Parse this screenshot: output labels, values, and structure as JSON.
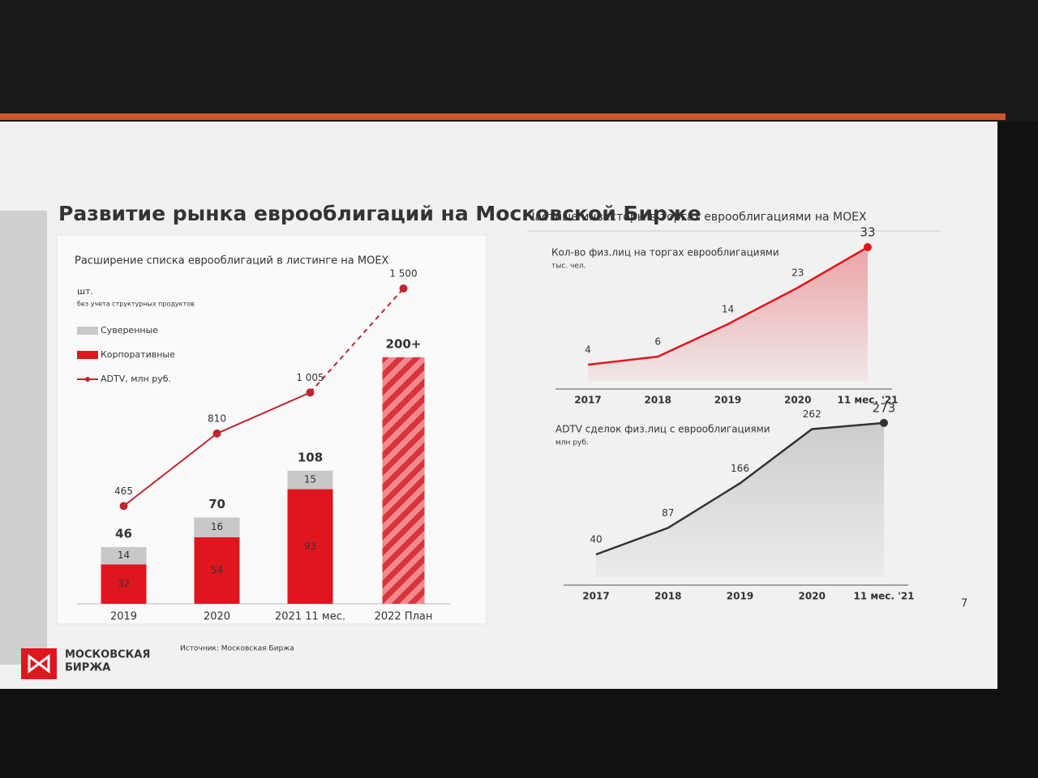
{
  "slide": {
    "title": "Развитие рынка еврооблигаций на Московской Бирже",
    "panel_title": "Частные инвесторы в торгах еврооблигациями на MOEX",
    "page": "7",
    "logo": [
      "МОСКОВСКАЯ",
      "БИРЖА"
    ],
    "source": "Источник: Московская Биржа"
  },
  "chart_data": [
    {
      "type": "bar",
      "title": "Расширение списка еврооблигаций в листинге на MOEX",
      "unit": "шт.",
      "note": "без учета структурных продуктов",
      "categories": [
        "2019",
        "2020",
        "2021 11 мес.",
        "2022 План"
      ],
      "series": [
        {
          "name": "Суверенные",
          "color": "#c8c8c8",
          "values": [
            14,
            16,
            15,
            null
          ]
        },
        {
          "name": "Корпоративные",
          "color": "#e0161e",
          "values": [
            32,
            54,
            93,
            null
          ]
        }
      ],
      "totals": {
        "values": [
          46,
          70,
          108,
          200
        ],
        "value_labels": [
          "46",
          "70",
          "108",
          "200+"
        ]
      },
      "line": {
        "name": "ADTV, млн руб.",
        "color": "#c0262e",
        "axis": "y2",
        "values": [
          465,
          810,
          1005,
          1500
        ],
        "value_labels": [
          "465",
          "810",
          "1 005",
          "1 500"
        ]
      },
      "ylim": [
        0,
        240
      ],
      "y2lim": [
        0,
        1600
      ]
    },
    {
      "type": "area",
      "title": "Кол-во физ.лиц на торгах еврооблигациями",
      "unit": "тыс. чел.",
      "categories": [
        "2017",
        "2018",
        "2019",
        "2020",
        "11 мес. '21"
      ],
      "values": [
        4,
        6,
        14,
        23,
        33
      ],
      "color": "#e0161e",
      "ylim": [
        0,
        36
      ]
    },
    {
      "type": "area",
      "title": "ADTV сделок физ.лиц с еврооблигациями",
      "unit": "млн руб.",
      "categories": [
        "2017",
        "2018",
        "2019",
        "2020",
        "11 мес. '21"
      ],
      "values": [
        40,
        87,
        166,
        262,
        273
      ],
      "color": "#333333",
      "ylim": [
        0,
        290
      ]
    }
  ]
}
